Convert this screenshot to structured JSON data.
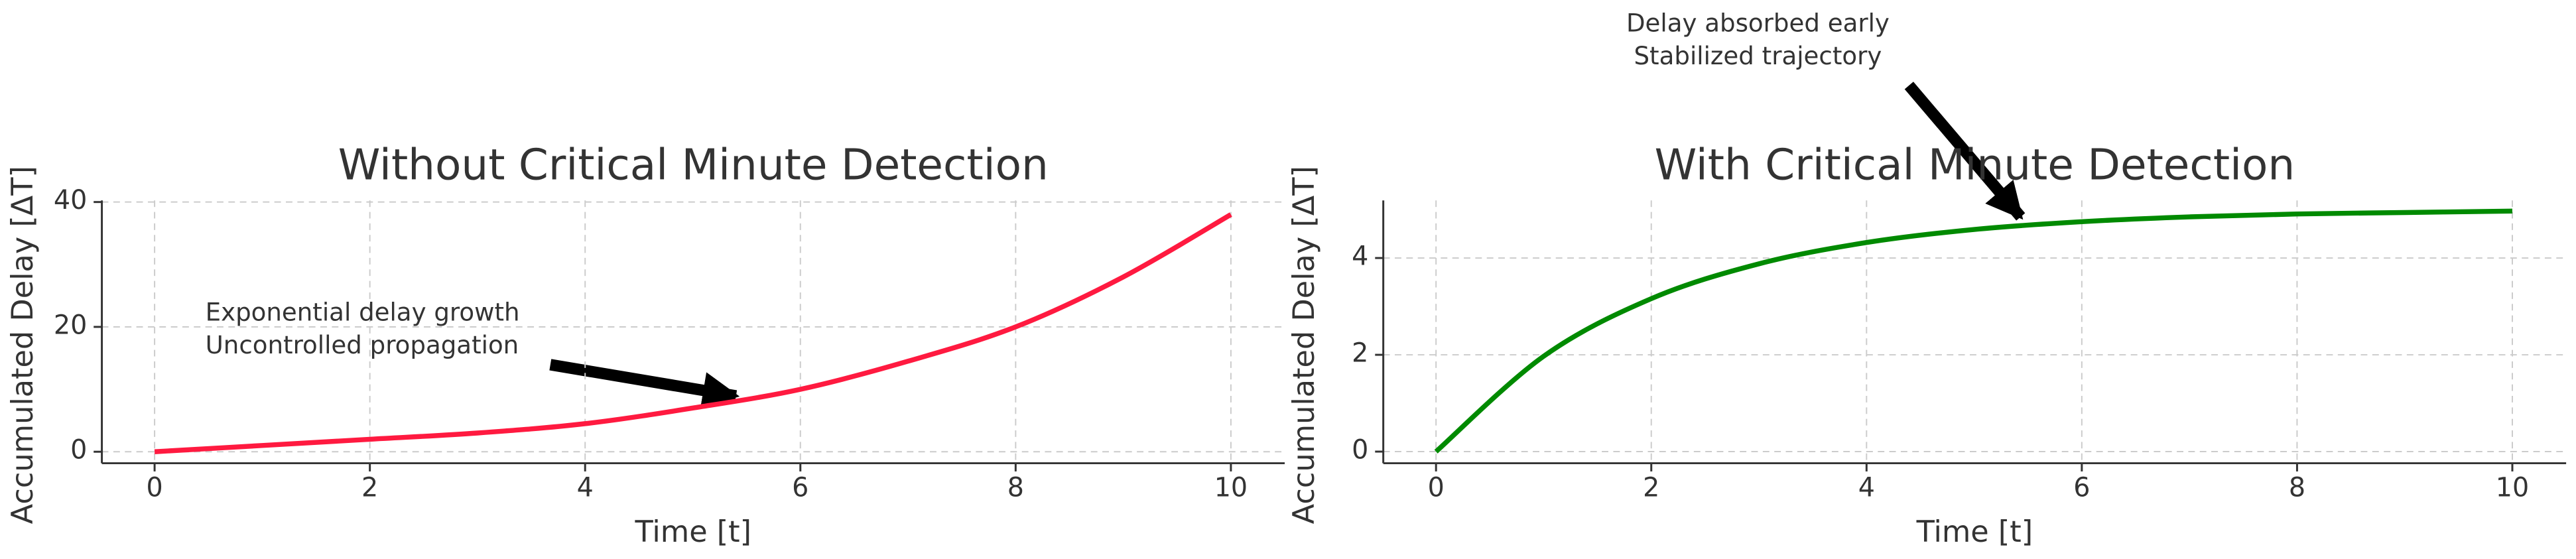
{
  "chart_data": [
    {
      "type": "line",
      "title": "Without Critical Minute Detection",
      "xlabel": "Time [t]",
      "ylabel": "Accumulated Delay [ΔT]",
      "x": [
        0,
        1,
        2,
        3,
        4,
        5,
        6,
        7,
        8,
        9,
        10
      ],
      "values": [
        0,
        1,
        2,
        3,
        4.5,
        7,
        10,
        14.5,
        20,
        28,
        38
      ],
      "color": "#ff1a40",
      "xlim": [
        -0.49,
        10.5
      ],
      "ylim": [
        -1.84,
        40.26
      ],
      "xticks": [
        0,
        2,
        4,
        6,
        8,
        10
      ],
      "yticks": [
        0,
        20,
        40
      ],
      "grid": true,
      "annotation": [
        "Exponential delay growth",
        "Uncontrolled propagation"
      ]
    },
    {
      "type": "line",
      "title": "With Critical Minute Detection",
      "xlabel": "Time [t]",
      "ylabel": "Accumulated Delay [ΔT]",
      "x": [
        0,
        1,
        2,
        3,
        4,
        5,
        6,
        7,
        8,
        9,
        10
      ],
      "values": [
        0,
        1.97,
        3.16,
        3.88,
        4.32,
        4.59,
        4.75,
        4.85,
        4.91,
        4.94,
        4.97
      ],
      "color": "#008a00",
      "xlim": [
        -0.49,
        10.5
      ],
      "ylim": [
        -0.24,
        5.19
      ],
      "xticks": [
        0,
        2,
        4,
        6,
        8,
        10
      ],
      "yticks": [
        0,
        2,
        4
      ],
      "grid": true,
      "annotation": [
        "Delay absorbed early",
        "Stabilized trajectory"
      ]
    }
  ]
}
